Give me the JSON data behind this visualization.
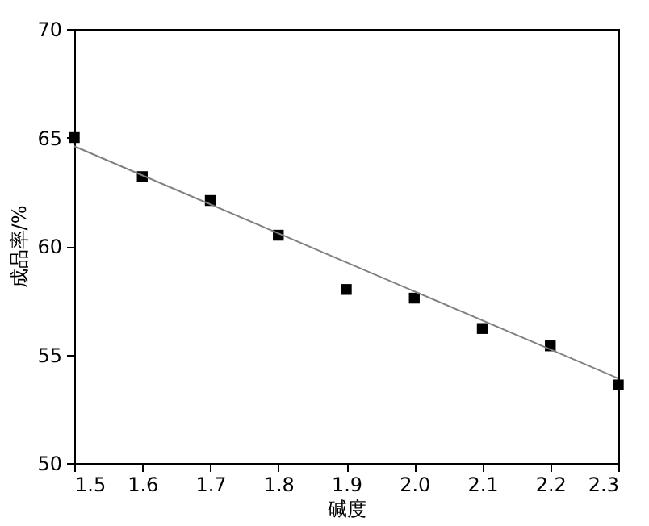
{
  "chart_data": {
    "type": "scatter",
    "xlabel": "碱度",
    "ylabel": "成品率/%",
    "series": [
      {
        "color": "#000000",
        "marker": "square",
        "x": [
          1.5,
          1.6,
          1.7,
          1.8,
          1.9,
          2.0,
          2.1,
          2.2,
          2.3
        ],
        "values": [
          65.0,
          63.2,
          62.1,
          60.5,
          58.0,
          57.6,
          56.2,
          55.4,
          53.6
        ]
      },
      {
        "type": "line",
        "color": "#808080",
        "x": [
          1.5,
          2.3
        ],
        "values": [
          64.6,
          53.9
        ]
      }
    ],
    "xlim": [
      1.5,
      2.3
    ],
    "xticks": [
      1.5,
      1.6,
      1.7,
      1.8,
      1.9,
      {
        "value": 2.0,
        "label": "2.0"
      },
      2.1,
      2.2,
      2.3
    ],
    "ylim": [
      50,
      70
    ],
    "yticks": [
      50,
      55,
      60,
      65,
      70
    ],
    "grid": false
  }
}
